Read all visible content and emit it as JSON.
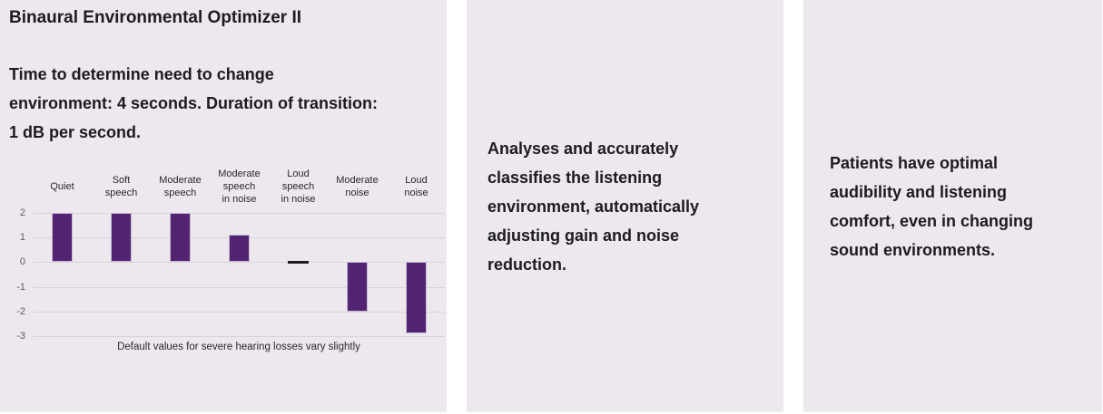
{
  "cards": [
    {
      "title": "Binaural Environmental Optimizer II",
      "body_lines": [
        "Time to determine need to change",
        "environment: 4 seconds. Duration of transition:",
        "1 dB per second."
      ]
    },
    {
      "body_lines": [
        "Analyses and accurately",
        "classifies the listening",
        "environment, automatically",
        "adjusting gain and noise",
        "reduction."
      ]
    },
    {
      "body_lines": [
        "Patients have optimal",
        "audibility and listening",
        "comfort, even in changing",
        "sound environments."
      ]
    }
  ],
  "chart_data": {
    "type": "bar",
    "categories": [
      "Quiet",
      "Soft speech",
      "Moderate speech",
      "Moderate speech in noise",
      "Loud speech in noise",
      "Moderate noise",
      "Loud noise"
    ],
    "category_lines": [
      [
        "Quiet"
      ],
      [
        "Soft",
        "speech"
      ],
      [
        "Moderate",
        "speech"
      ],
      [
        "Moderate",
        "speech",
        "in noise"
      ],
      [
        "Loud",
        "speech",
        "in noise"
      ],
      [
        "Moderate",
        "noise"
      ],
      [
        "Loud",
        "noise"
      ]
    ],
    "values": [
      2,
      2,
      2,
      1.1,
      0,
      -2,
      -2.9
    ],
    "yticks": [
      2,
      1,
      0,
      -1,
      -2,
      -3
    ],
    "ylim": [
      -3,
      2
    ],
    "title": "",
    "xlabel": "",
    "ylabel": "",
    "grid": true,
    "legend": false,
    "caption": "Default values for severe hearing losses vary slightly",
    "bar_color": "#522471",
    "zero_marker_color": "#1c1a1d"
  },
  "colors": {
    "page_bg": "#ffffff",
    "panel_bg": "#ece8ee",
    "text": "#1d1b1e",
    "grid_line": "#d7d3d9",
    "tick_text": "#5d5961"
  }
}
